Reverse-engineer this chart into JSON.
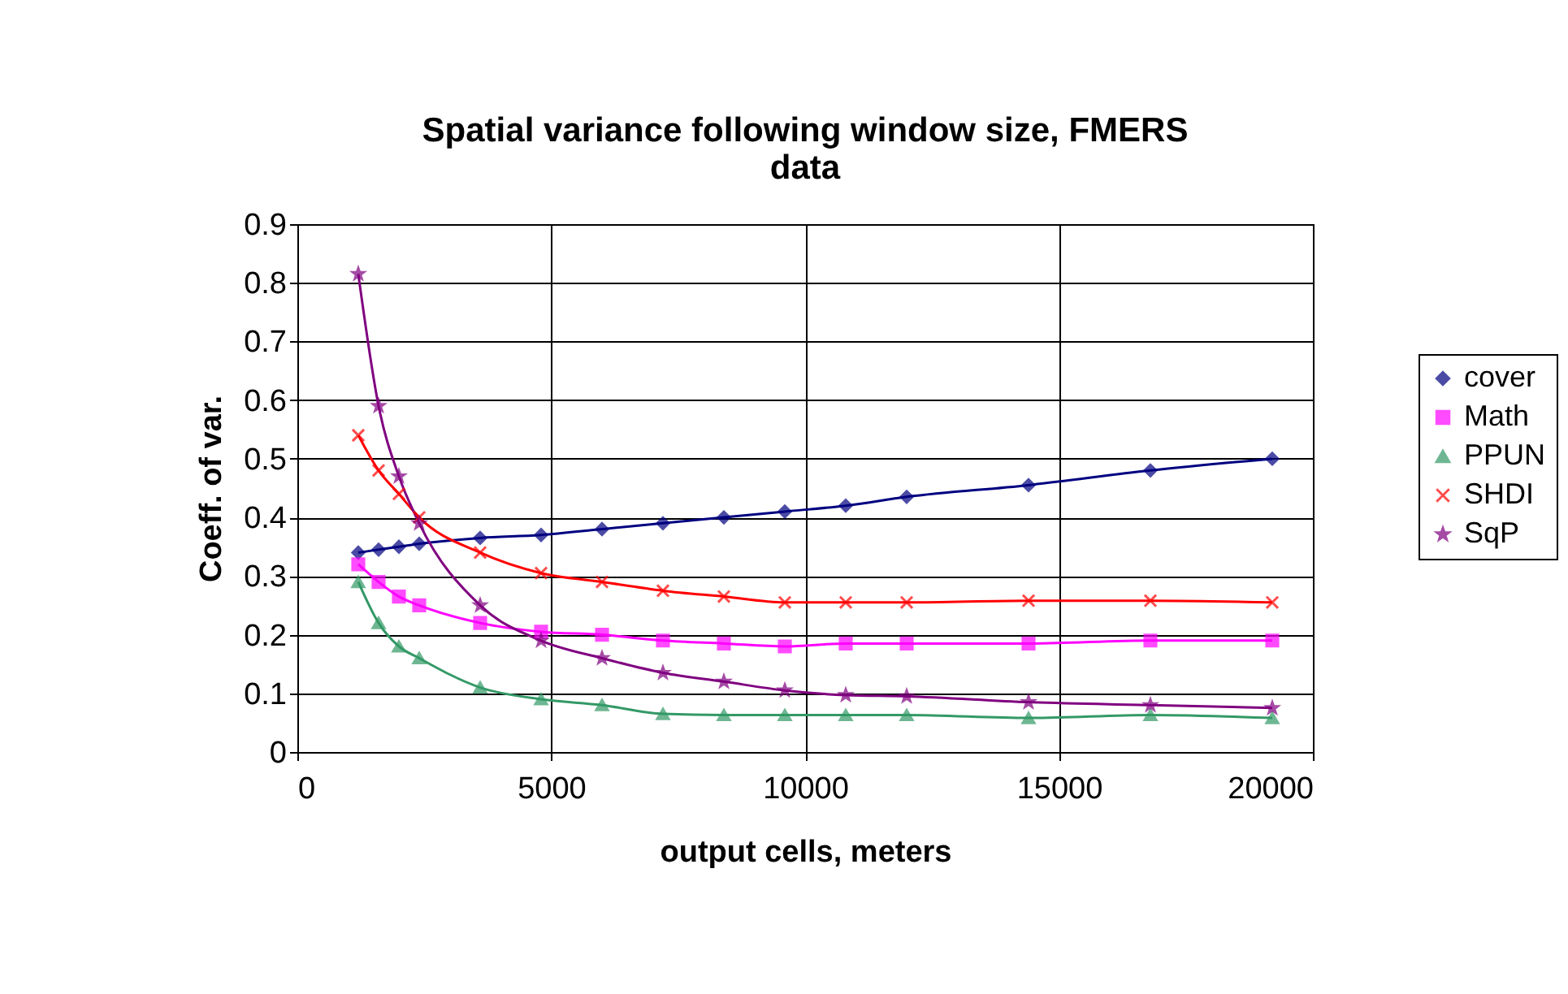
{
  "chart_data": {
    "type": "line",
    "title": "Spatial variance following window size, FMERS data",
    "xlabel": "output cells, meters",
    "ylabel": "Coeff. of var.",
    "x": [
      1200,
      1600,
      2000,
      2400,
      3600,
      4800,
      6000,
      7200,
      8400,
      9600,
      10800,
      12000,
      14400,
      16800,
      19200
    ],
    "series": [
      {
        "name": "cover",
        "color": "#000080",
        "marker": "diamond",
        "values": [
          0.34,
          0.345,
          0.35,
          0.355,
          0.365,
          0.37,
          0.38,
          0.39,
          0.4,
          0.41,
          0.42,
          0.435,
          0.455,
          0.48,
          0.5
        ]
      },
      {
        "name": "Math",
        "color": "#ff00ff",
        "marker": "square",
        "values": [
          0.32,
          0.29,
          0.265,
          0.25,
          0.22,
          0.205,
          0.2,
          0.19,
          0.185,
          0.18,
          0.185,
          0.185,
          0.185,
          0.19,
          0.19
        ]
      },
      {
        "name": "PPUN",
        "color": "#339966",
        "marker": "triangle",
        "values": [
          0.29,
          0.22,
          0.18,
          0.16,
          0.11,
          0.09,
          0.08,
          0.065,
          0.063,
          0.063,
          0.063,
          0.063,
          0.058,
          0.063,
          0.058
        ]
      },
      {
        "name": "SHDI",
        "color": "#ff0000",
        "marker": "cross",
        "values": [
          0.54,
          0.48,
          0.44,
          0.4,
          0.34,
          0.305,
          0.29,
          0.275,
          0.265,
          0.255,
          0.255,
          0.255,
          0.258,
          0.258,
          0.255
        ]
      },
      {
        "name": "SqP",
        "color": "#800080",
        "marker": "star",
        "values": [
          0.815,
          0.59,
          0.47,
          0.39,
          0.25,
          0.19,
          0.16,
          0.135,
          0.12,
          0.105,
          0.097,
          0.095,
          0.085,
          0.08,
          0.075
        ]
      }
    ],
    "xlim": [
      0,
      20000
    ],
    "ylim": [
      0,
      0.9
    ],
    "xticks": [
      0,
      5000,
      10000,
      15000,
      20000
    ],
    "yticks": [
      0,
      0.1,
      0.2,
      0.3,
      0.4,
      0.5,
      0.6,
      0.7,
      0.8,
      0.9
    ],
    "grid": true,
    "legend": "right",
    "line_style": "solid"
  }
}
